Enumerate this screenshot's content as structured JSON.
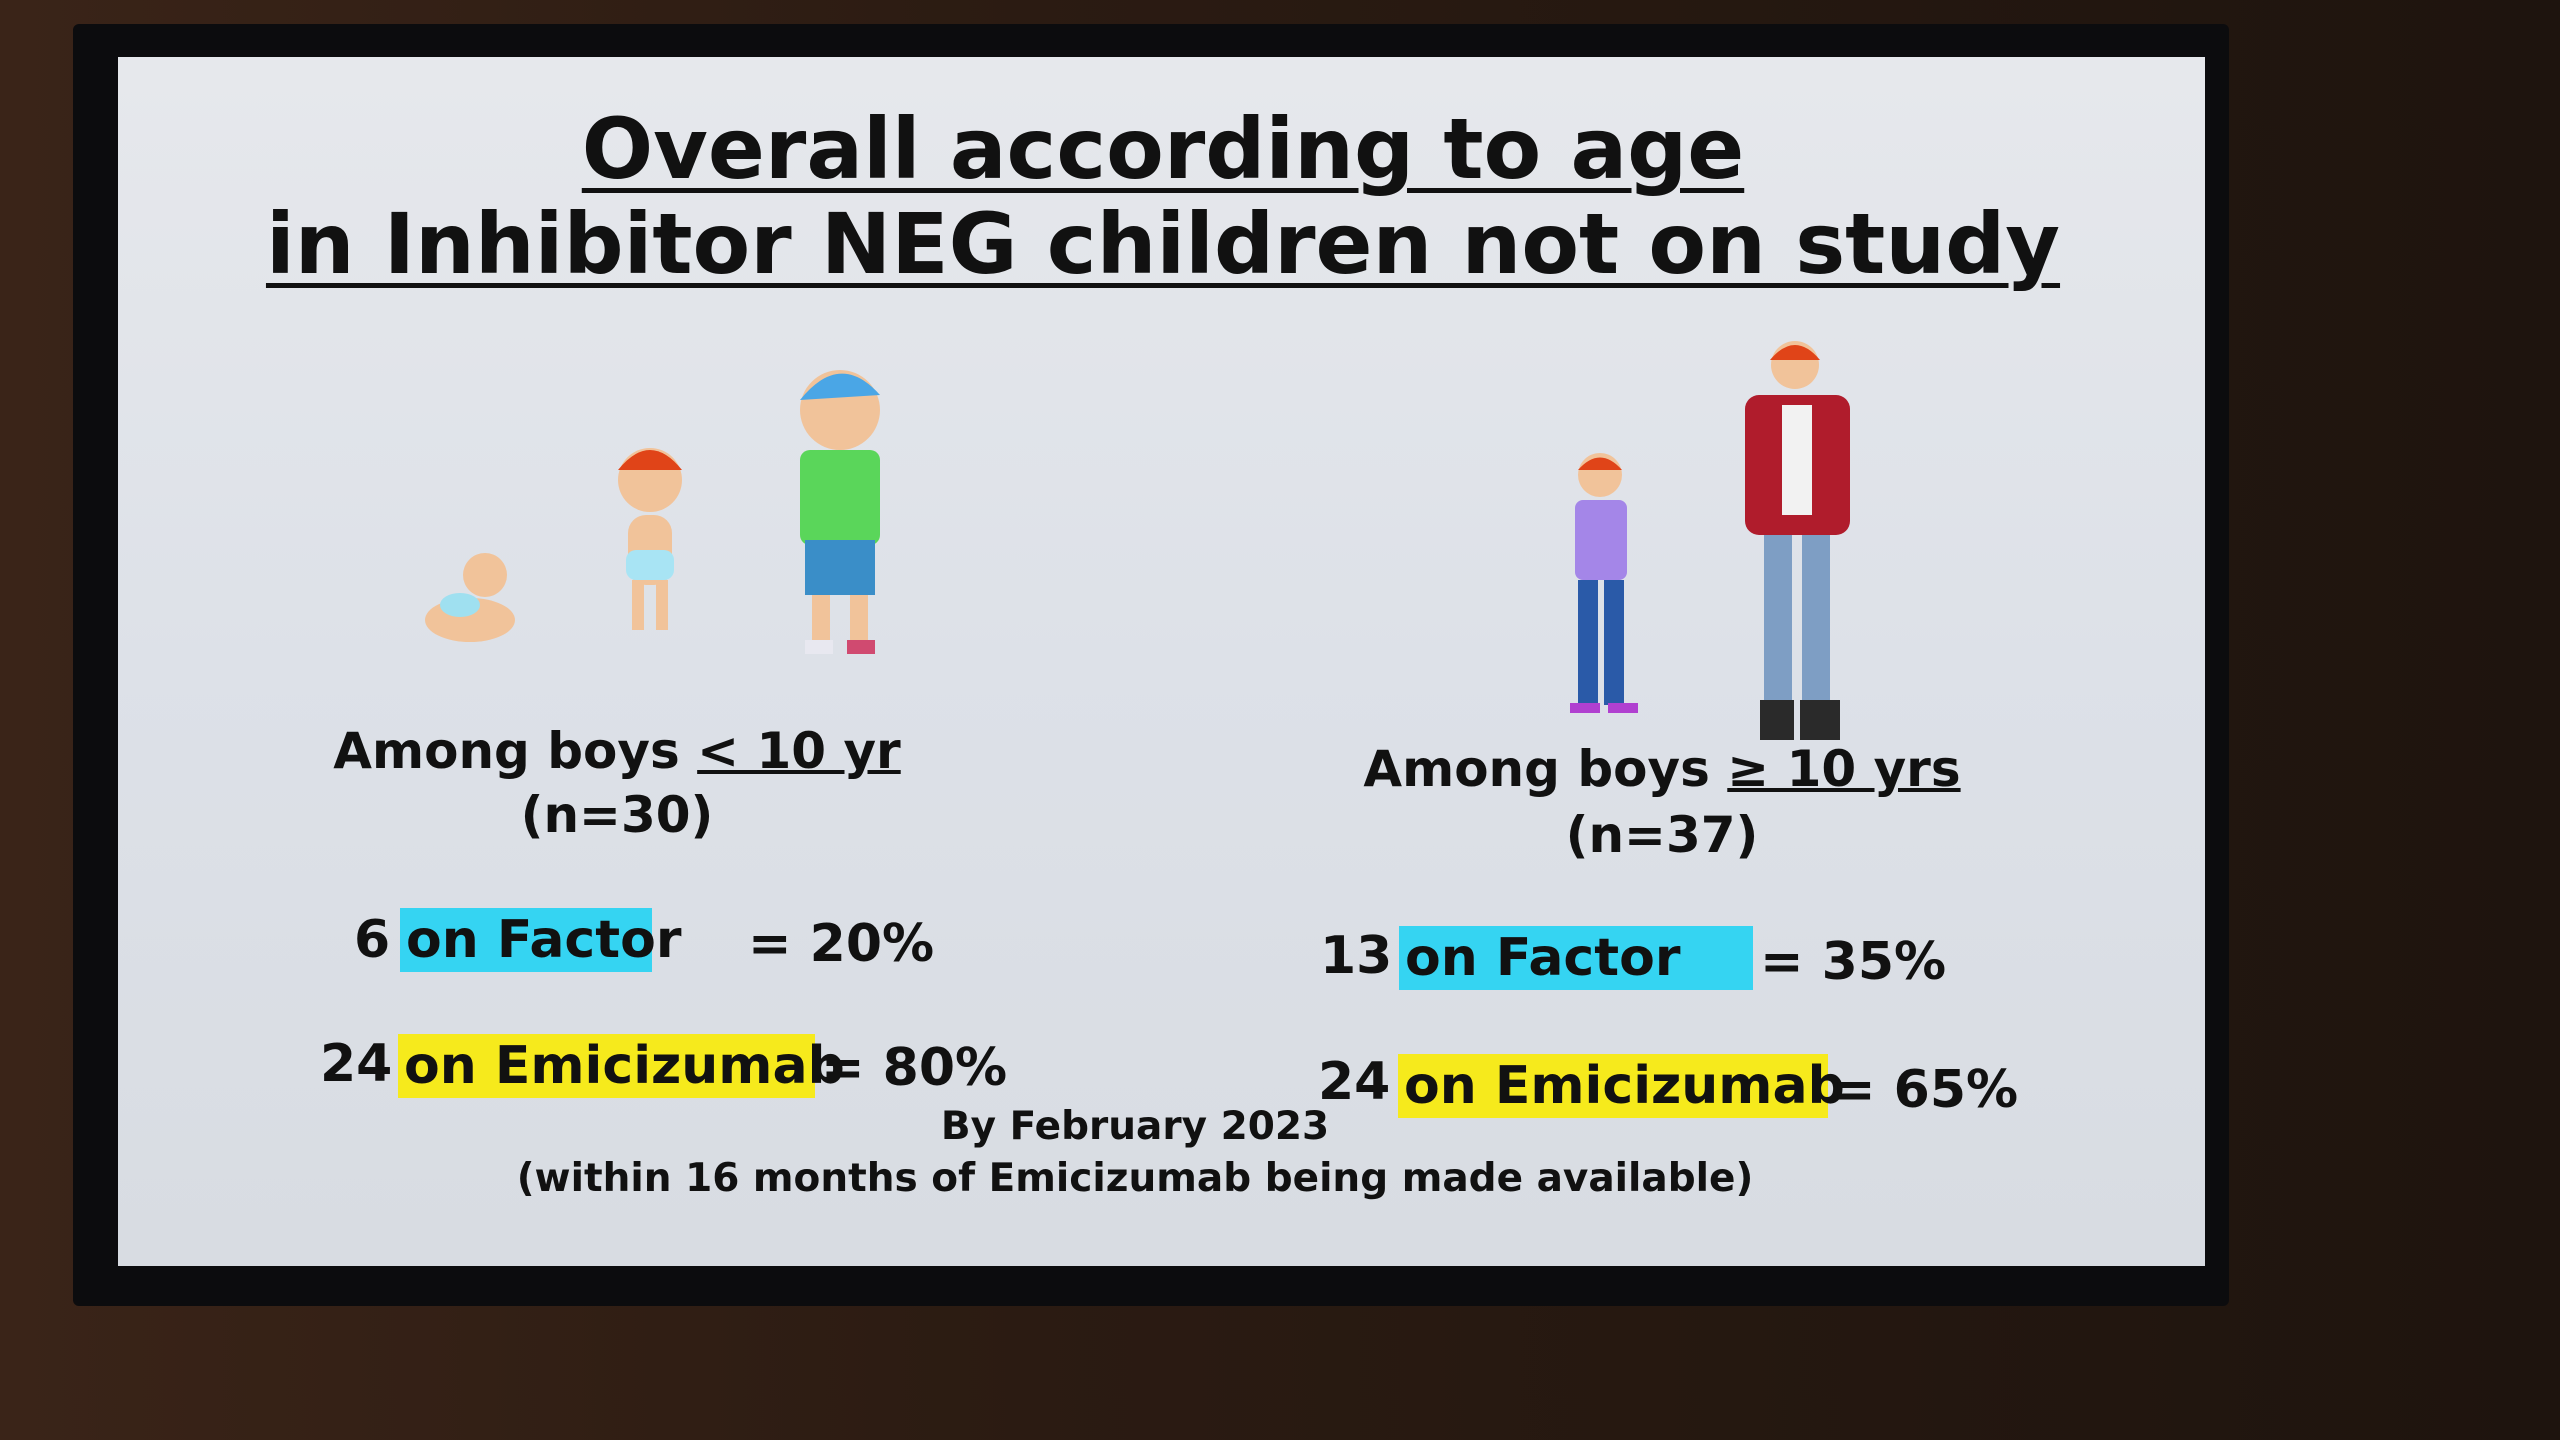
{
  "slide": {
    "title": [
      "Overall according to age",
      "in Inhibitor NEG children not on study"
    ],
    "groups": [
      {
        "heading": "Among boys",
        "age": "< 10 yr",
        "n": "(n=30)",
        "rows": [
          {
            "count": "6",
            "label": "on Factor",
            "result": "= 20%"
          },
          {
            "count": "24",
            "label": "on Emicizumab",
            "result": "= 80%"
          }
        ]
      },
      {
        "heading": "Among boys",
        "age": "≥ 10 yrs",
        "n": "(n=37)",
        "rows": [
          {
            "count": "13",
            "label": "on Factor",
            "result": "= 35%"
          },
          {
            "count": "24",
            "label": "on Emicizumab",
            "result": "= 65%"
          }
        ]
      }
    ],
    "footer": [
      "By February 2023",
      "(within 16 months of Emicizumab being made available)"
    ]
  }
}
